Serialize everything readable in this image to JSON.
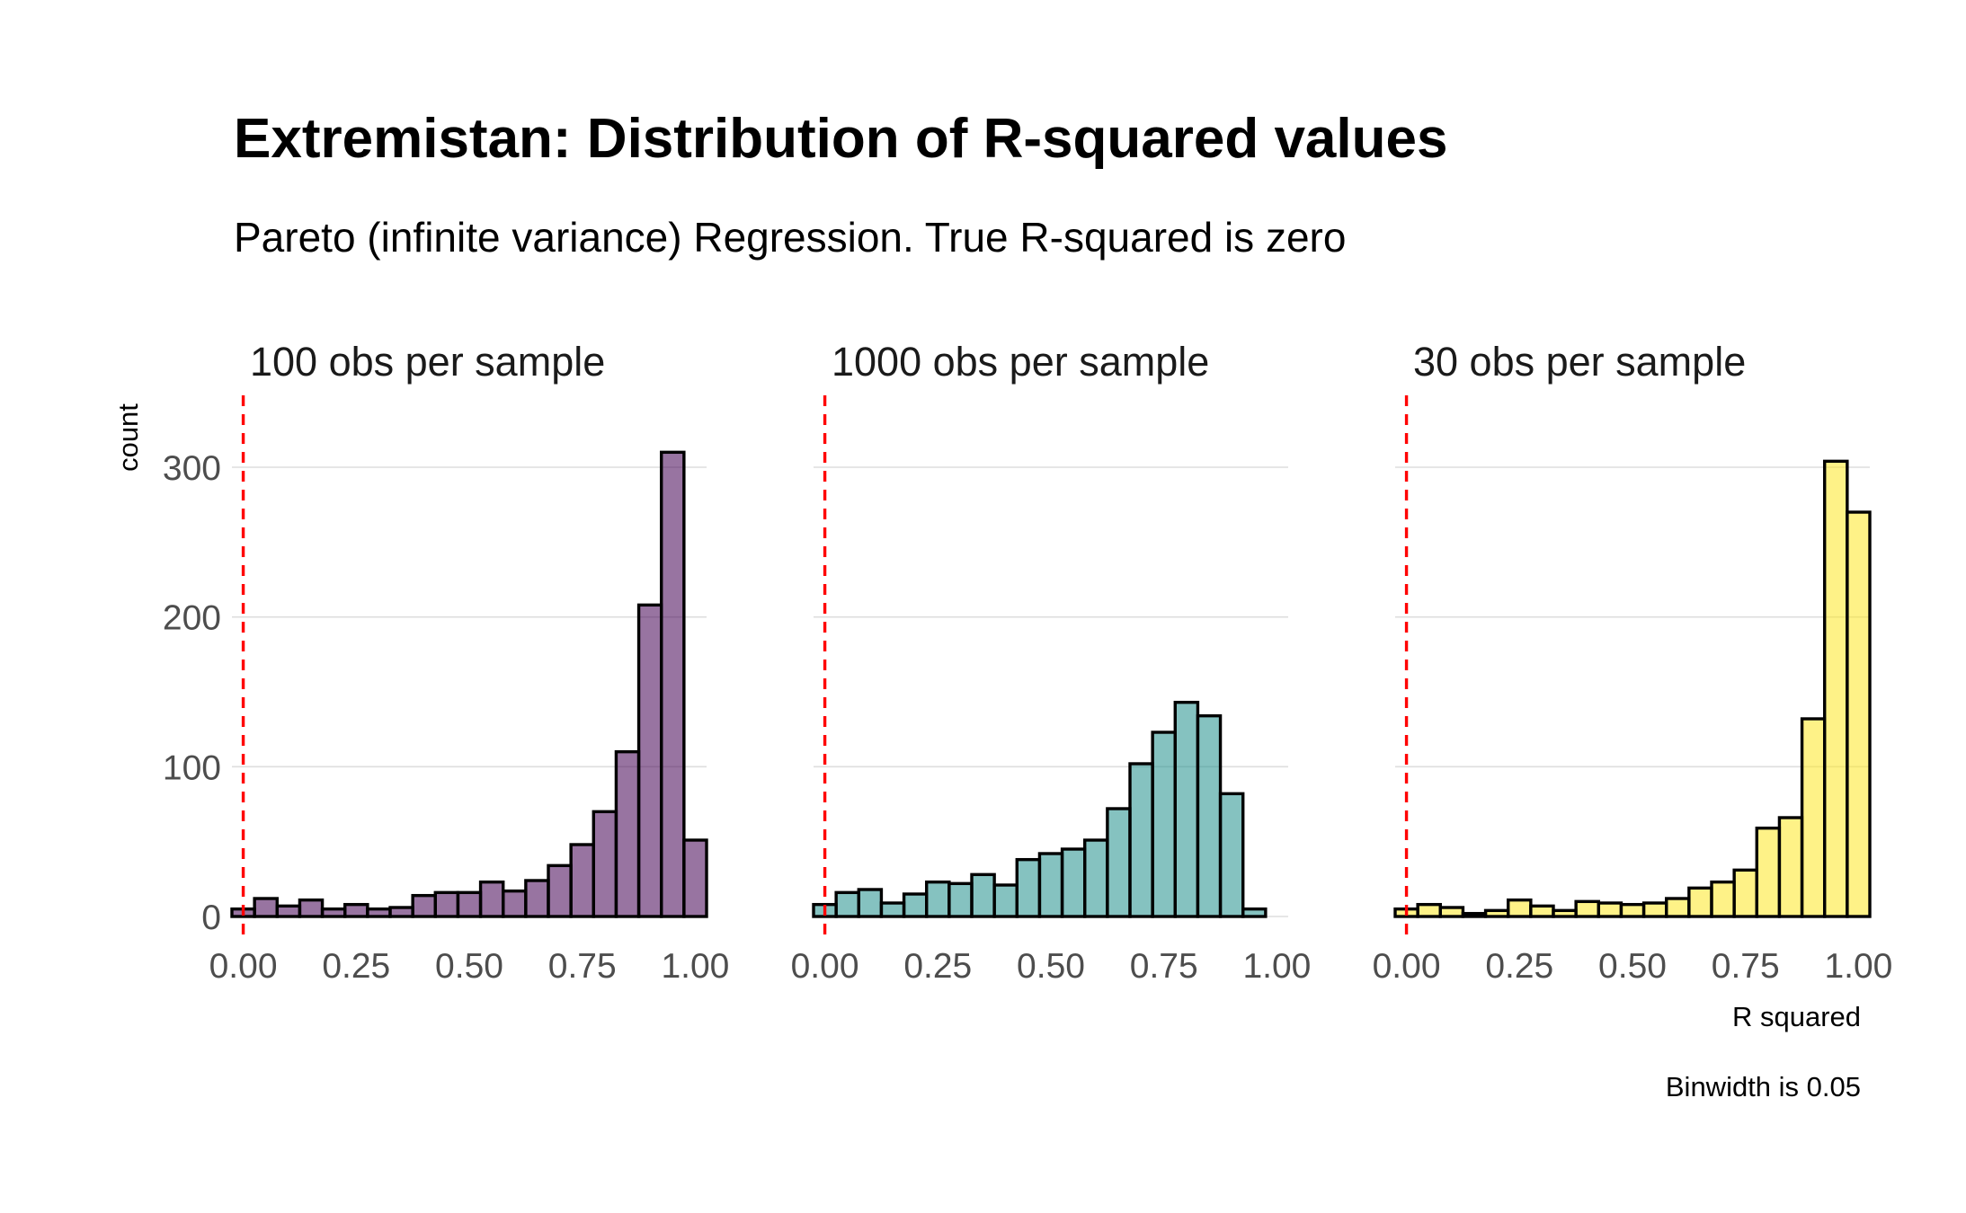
{
  "chart_data": {
    "type": "bar",
    "title": "Extremistan: Distribution of R-squared values",
    "subtitle": "Pareto (infinite variance) Regression. True R-squared is zero",
    "xlabel": "R squared",
    "ylabel": "count",
    "caption": "Binwidth is 0.05",
    "binwidth": 0.05,
    "xlim": [
      -0.025,
      1.025
    ],
    "ylim": [
      0,
      330
    ],
    "x_ticks": [
      "0.00",
      "0.25",
      "0.50",
      "0.75",
      "1.00"
    ],
    "y_ticks": [
      "0",
      "100",
      "200",
      "300"
    ],
    "x_tick_values": [
      0,
      0.25,
      0.5,
      0.75,
      1.0
    ],
    "y_tick_values": [
      0,
      100,
      200,
      300
    ],
    "reference_line": {
      "x": 0,
      "style": "dashed",
      "color": "#ff0000"
    },
    "grid": true,
    "bin_centers": [
      0,
      0.05,
      0.1,
      0.15,
      0.2,
      0.25,
      0.3,
      0.35,
      0.4,
      0.45,
      0.5,
      0.55,
      0.6,
      0.65,
      0.7,
      0.75,
      0.8,
      0.85,
      0.9,
      0.95,
      1.0
    ],
    "panels": [
      {
        "label": "100 obs per sample",
        "color": "#440154",
        "counts": [
          5,
          12,
          7,
          11,
          5,
          8,
          5,
          6,
          14,
          16,
          16,
          23,
          17,
          24,
          34,
          48,
          70,
          110,
          208,
          310,
          51
        ]
      },
      {
        "label": "1000 obs per sample",
        "color": "#21908C",
        "counts": [
          8,
          16,
          18,
          9,
          15,
          23,
          22,
          28,
          21,
          38,
          42,
          45,
          51,
          72,
          102,
          123,
          143,
          134,
          82,
          5,
          0
        ]
      },
      {
        "label": "30 obs per sample",
        "color": "#FDE725",
        "counts": [
          5,
          8,
          6,
          2,
          4,
          11,
          7,
          4,
          10,
          9,
          8,
          9,
          12,
          19,
          23,
          31,
          59,
          66,
          132,
          304,
          270
        ]
      }
    ]
  }
}
